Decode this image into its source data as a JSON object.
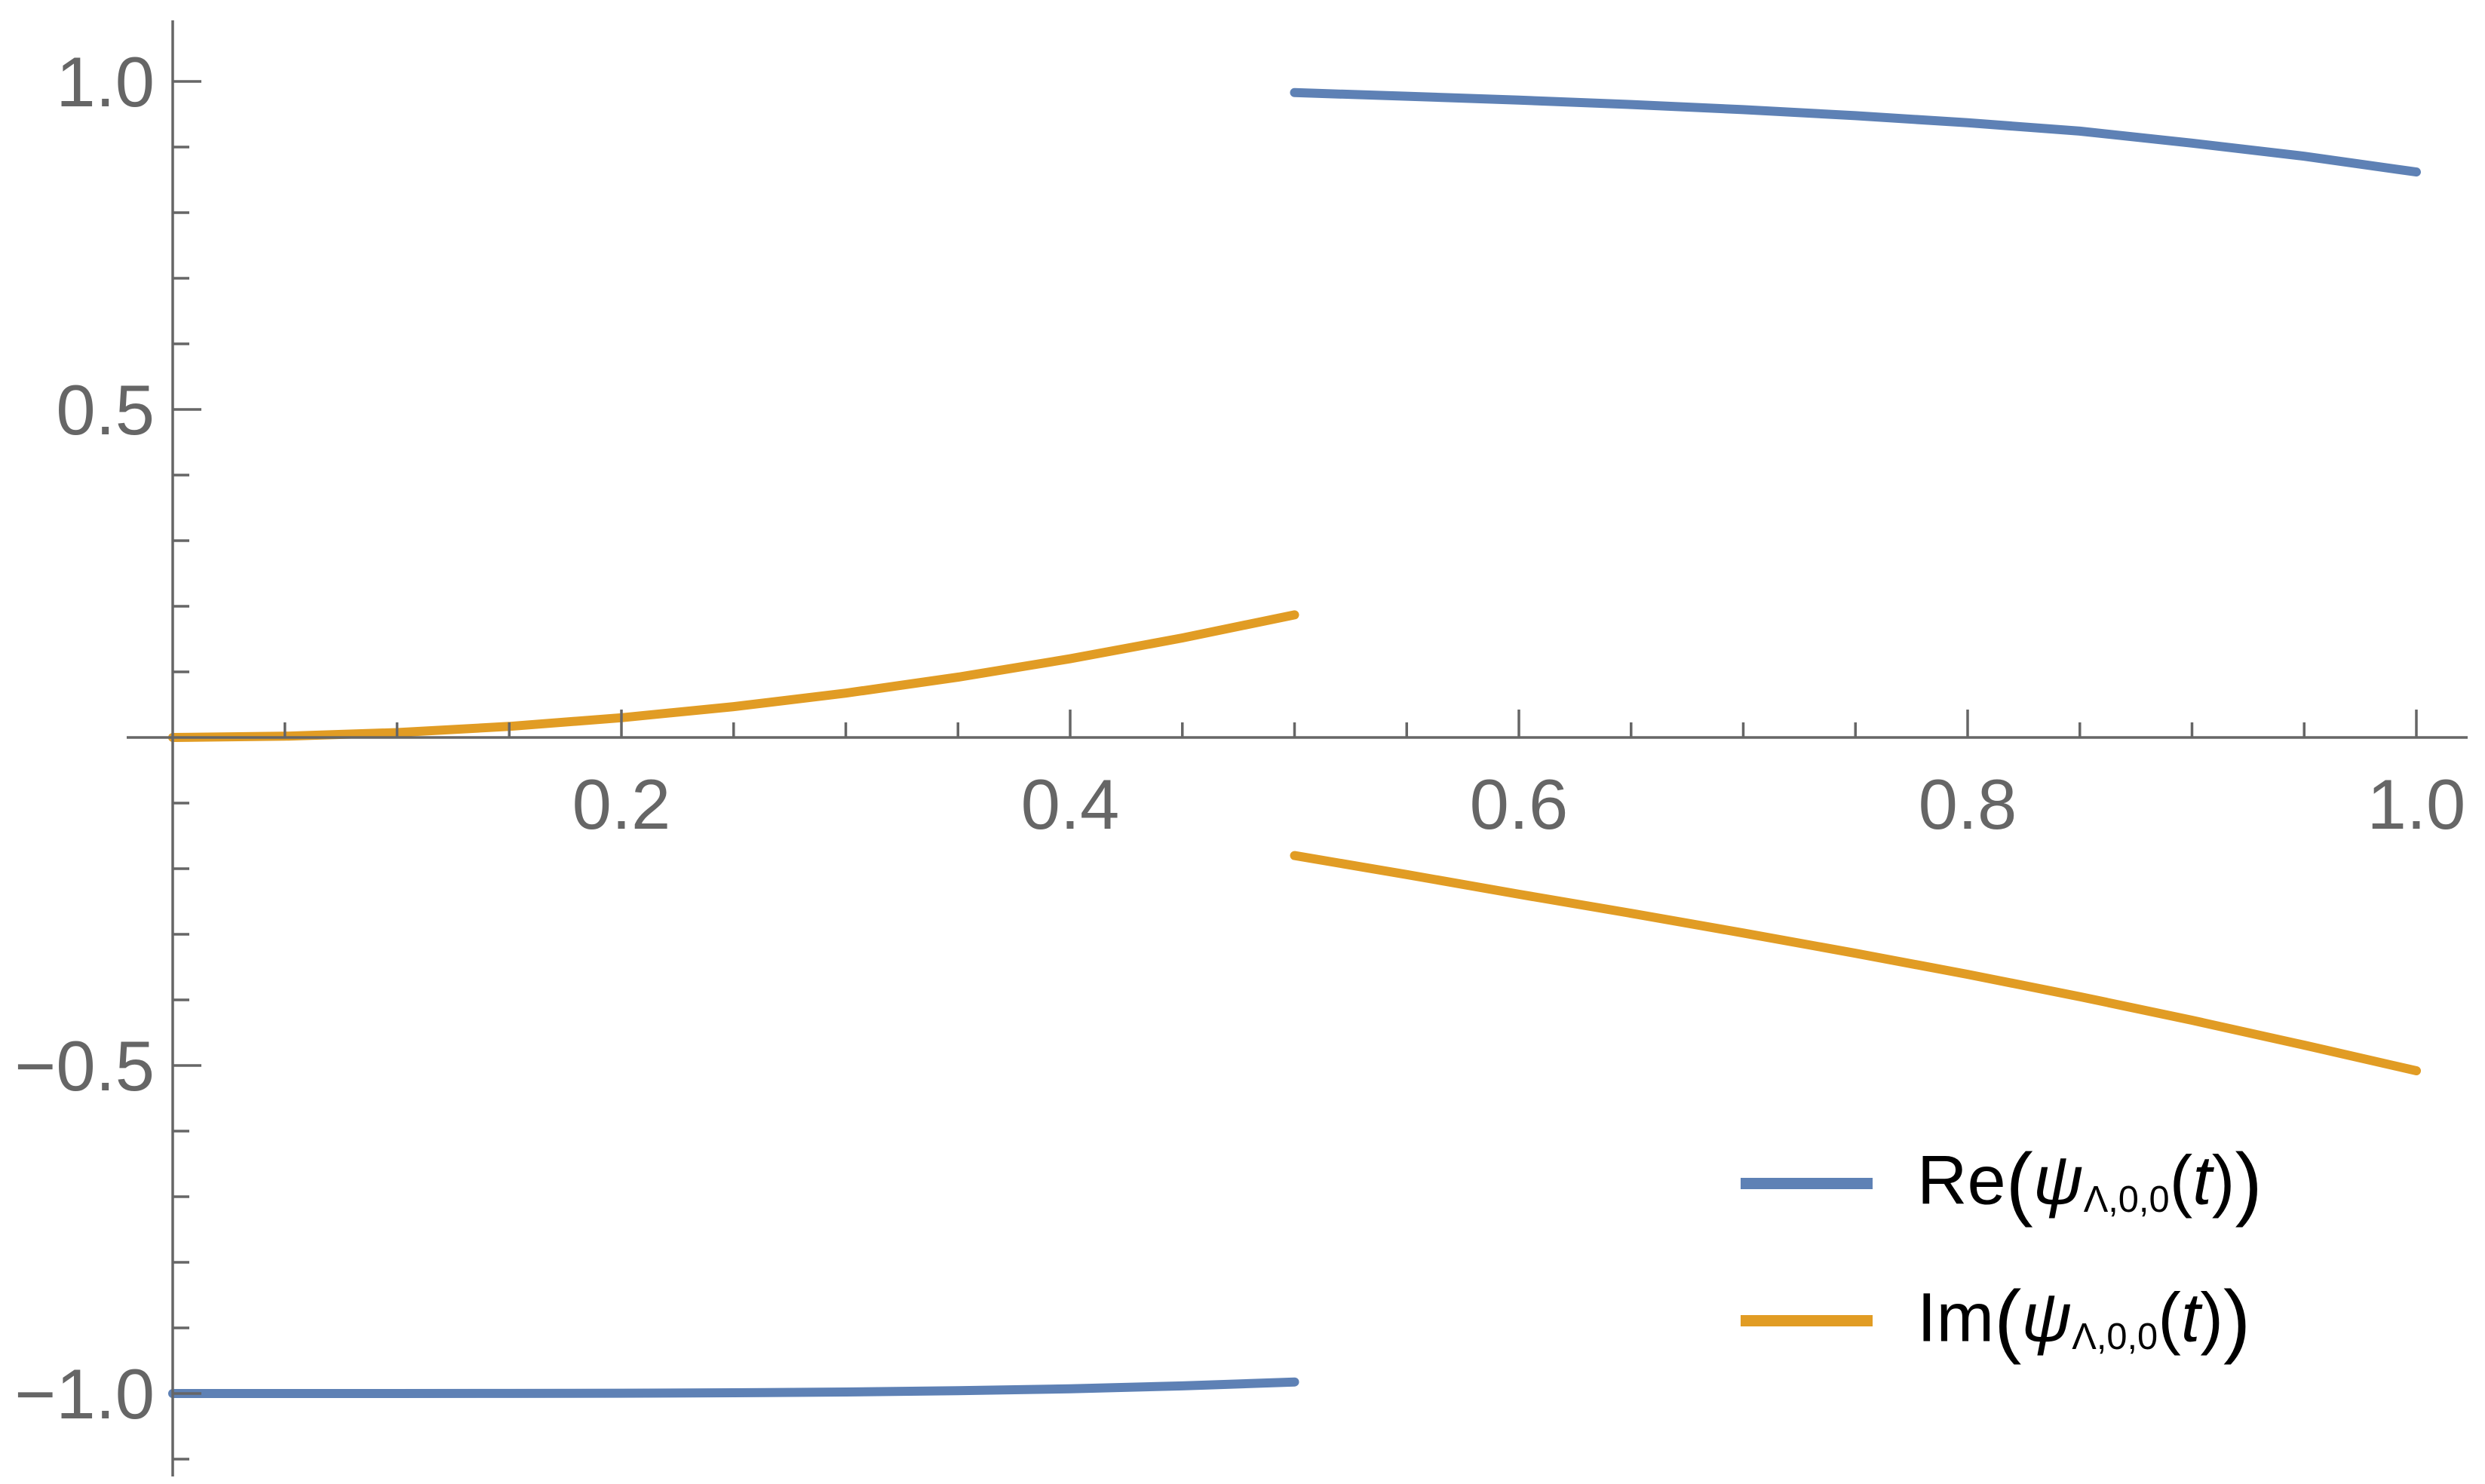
{
  "chart_data": {
    "type": "line",
    "title": "",
    "xlabel": "",
    "ylabel": "",
    "xlim": [
      0,
      1
    ],
    "ylim": [
      -1,
      1
    ],
    "grid": false,
    "legend_position": "bottom-right",
    "axis_color": "#666666",
    "x_axis": {
      "ticks_major": [
        {
          "value": 0.2,
          "label": "0.2"
        },
        {
          "value": 0.4,
          "label": "0.4"
        },
        {
          "value": 0.6,
          "label": "0.6"
        },
        {
          "value": 0.8,
          "label": "0.8"
        },
        {
          "value": 1.0,
          "label": "1.0"
        }
      ],
      "ticks_minor": [
        0.05,
        0.1,
        0.15,
        0.25,
        0.3,
        0.35,
        0.45,
        0.5,
        0.55,
        0.65,
        0.7,
        0.75,
        0.85,
        0.9,
        0.95
      ]
    },
    "y_axis": {
      "ticks_major": [
        {
          "value": 1.0,
          "label": "1.0"
        },
        {
          "value": 0.5,
          "label": "0.5"
        },
        {
          "value": -0.5,
          "label": "−0.5"
        },
        {
          "value": -1.0,
          "label": "−1.0"
        }
      ],
      "ticks_minor": [
        0.9,
        0.8,
        0.7,
        0.6,
        0.4,
        0.3,
        0.2,
        0.1,
        -0.1,
        -0.2,
        -0.3,
        -0.4,
        -0.6,
        -0.7,
        -0.8,
        -0.9,
        -1.1
      ]
    },
    "series": [
      {
        "id": "re",
        "name": "Re(ψΛ,0,0(t))",
        "color": "#5E81B5",
        "segments": [
          {
            "x": [
              0,
              0.05,
              0.1,
              0.15,
              0.2,
              0.25,
              0.3,
              0.35,
              0.4,
              0.45,
              0.5
            ],
            "y": [
              -1.0,
              -1.0,
              -1.0,
              -0.9999,
              -0.9995,
              -0.9989,
              -0.9977,
              -0.9958,
              -0.9928,
              -0.9884,
              -0.9824
            ]
          },
          {
            "x": [
              0.5,
              0.55,
              0.6,
              0.65,
              0.7,
              0.75,
              0.8,
              0.85,
              0.9,
              0.95,
              1.0
            ],
            "y": [
              0.983,
              0.9775,
              0.9715,
              0.9648,
              0.957,
              0.9478,
              0.937,
              0.9242,
              0.906,
              0.886,
              0.862
            ]
          }
        ]
      },
      {
        "id": "im",
        "name": "Im(ψΛ,0,0(t))",
        "color": "#E19C24",
        "segments": [
          {
            "x": [
              0,
              0.05,
              0.1,
              0.15,
              0.2,
              0.25,
              0.3,
              0.35,
              0.4,
              0.45,
              0.5
            ],
            "y": [
              0,
              0.0019,
              0.0075,
              0.0169,
              0.0301,
              0.047,
              0.0676,
              0.092,
              0.12,
              0.1517,
              0.1869
            ]
          },
          {
            "x": [
              0.5,
              0.55,
              0.6,
              0.65,
              0.7,
              0.75,
              0.8,
              0.85,
              0.9,
              0.95,
              1.0
            ],
            "y": [
              -0.18,
              -0.209,
              -0.239,
              -0.268,
              -0.298,
              -0.329,
              -0.361,
              -0.395,
              -0.431,
              -0.469,
              -0.508
            ]
          }
        ]
      }
    ],
    "legend": {
      "items": [
        {
          "prefix": "Re",
          "open": "(",
          "psi": "ψ",
          "subscript": "Λ,0,0",
          "arg_open": "(",
          "arg_var": "t",
          "arg_close": ")",
          "close": ")",
          "color": "#5E81B5"
        },
        {
          "prefix": "Im",
          "open": "(",
          "psi": "ψ",
          "subscript": "Λ,0,0",
          "arg_open": "(",
          "arg_var": "t",
          "arg_close": ")",
          "close": ")",
          "color": "#E19C24"
        }
      ]
    }
  }
}
